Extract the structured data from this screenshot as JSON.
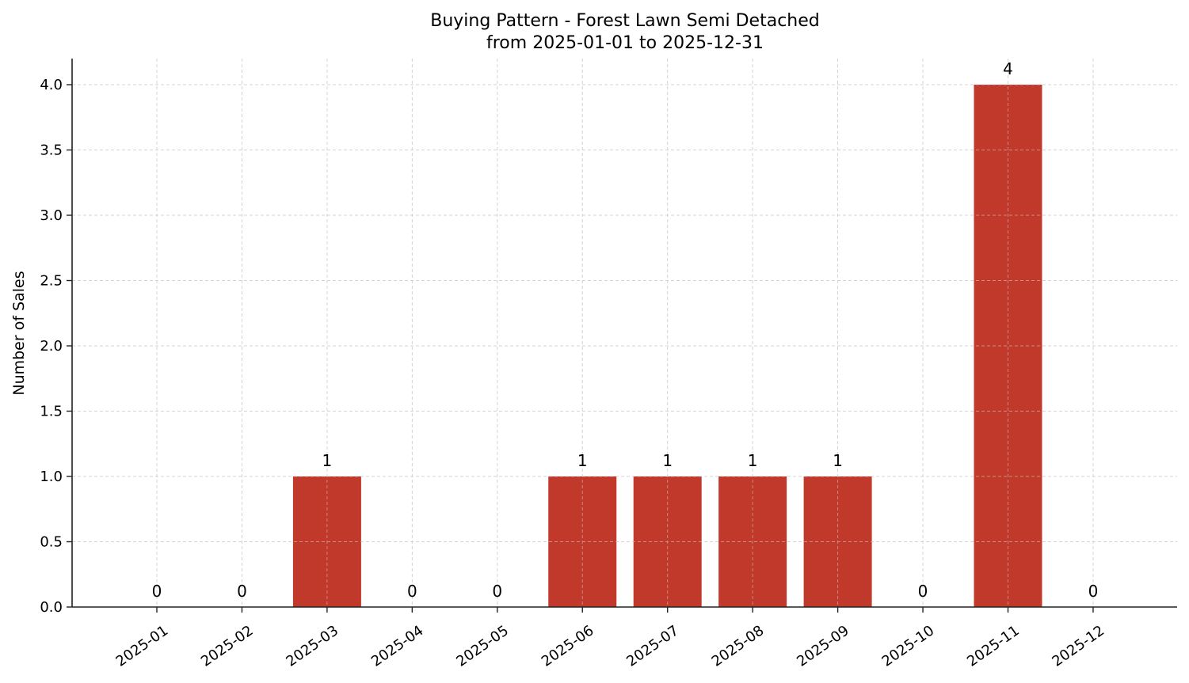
{
  "chart_data": {
    "type": "bar",
    "title": "Buying Pattern - Forest Lawn Semi Detached",
    "subtitle": "from 2025-01-01 to 2025-12-31",
    "xlabel": "",
    "ylabel": "Number of Sales",
    "categories": [
      "2025-01",
      "2025-02",
      "2025-03",
      "2025-04",
      "2025-05",
      "2025-06",
      "2025-07",
      "2025-08",
      "2025-09",
      "2025-10",
      "2025-11",
      "2025-12"
    ],
    "values": [
      0,
      0,
      1,
      0,
      0,
      1,
      1,
      1,
      1,
      0,
      4,
      0
    ],
    "data_labels": [
      "0",
      "0",
      "1",
      "0",
      "0",
      "1",
      "1",
      "1",
      "1",
      "0",
      "4",
      "0"
    ],
    "ylim": [
      0,
      4.2
    ],
    "yticks": [
      0.0,
      0.5,
      1.0,
      1.5,
      2.0,
      2.5,
      3.0,
      3.5,
      4.0
    ],
    "ytick_labels": [
      "0.0",
      "0.5",
      "1.0",
      "1.5",
      "2.0",
      "2.5",
      "3.0",
      "3.5",
      "4.0"
    ],
    "grid": true,
    "grid_style": "dashed",
    "legend": null,
    "bar_color": "#c0392b"
  }
}
